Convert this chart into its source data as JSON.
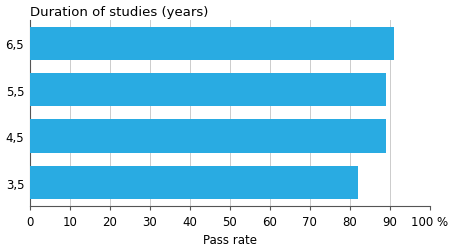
{
  "categories": [
    "6,5",
    "5,5",
    "4,5",
    "3,5"
  ],
  "values": [
    91,
    89,
    89,
    82
  ],
  "bar_color": "#29ABE2",
  "ylabel_title": "Duration of studies (years)",
  "xlabel": "Pass rate",
  "xlim": [
    0,
    100
  ],
  "xticks": [
    0,
    10,
    20,
    30,
    40,
    50,
    60,
    70,
    80,
    90,
    100
  ],
  "background_color": "#ffffff",
  "grid_color": "#cccccc",
  "bar_height": 0.72,
  "tick_fontsize": 8.5,
  "xlabel_fontsize": 8.5,
  "title_fontsize": 9.5
}
